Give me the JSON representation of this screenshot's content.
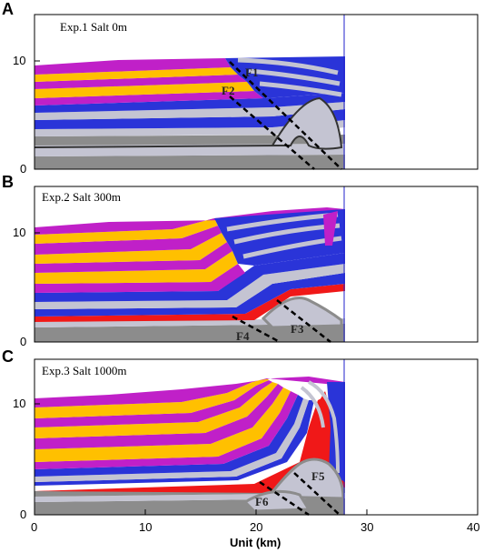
{
  "colors": {
    "magenta": "#c020c8",
    "yellow": "#ffc000",
    "blue": "#2a34d8",
    "lightgray": "#c4c4d2",
    "gray": "#8c8c8c",
    "red": "#f01818",
    "boundary": "#2222cc",
    "frame": "#000000"
  },
  "axis": {
    "x_label": "Unit (km)",
    "x_ticks": [
      "0",
      "10",
      "20",
      "30",
      "40"
    ],
    "y_ticks": [
      "0",
      "10"
    ]
  },
  "panels": [
    {
      "letter": "A",
      "title": "Exp.1 Salt   0m",
      "faults": [
        {
          "label": "F1"
        },
        {
          "label": "F2"
        }
      ]
    },
    {
      "letter": "B",
      "title": "Exp.2 Salt  300m",
      "faults": [
        {
          "label": "F3"
        },
        {
          "label": "F4"
        }
      ]
    },
    {
      "letter": "C",
      "title": "Exp.3 Salt 1000m",
      "faults": [
        {
          "label": "F5"
        },
        {
          "label": "F6"
        }
      ]
    }
  ]
}
